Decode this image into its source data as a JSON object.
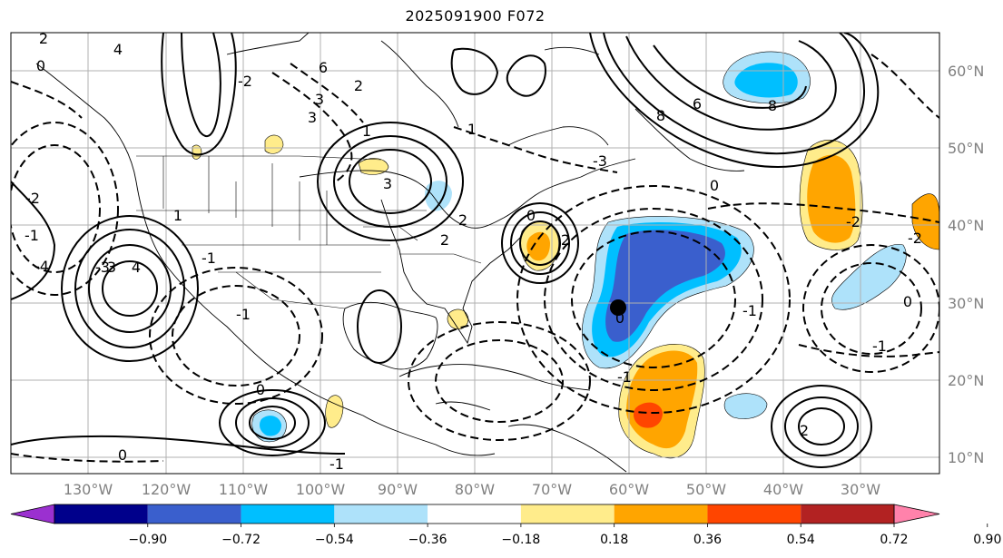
{
  "title": "2025091900 F072",
  "lon_ticks": [
    "130°W",
    "120°W",
    "110°W",
    "100°W",
    "90°W",
    "80°W",
    "70°W",
    "60°W",
    "50°W",
    "40°W",
    "30°W"
  ],
  "lat_ticks": [
    "60°N",
    "50°N",
    "40°N",
    "30°N",
    "20°N",
    "10°N"
  ],
  "colorbar": {
    "tick_labels": [
      "−0.90",
      "−0.72",
      "−0.54",
      "−0.36",
      "−0.18",
      "0.18",
      "0.36",
      "0.54",
      "0.72",
      "0.90"
    ],
    "colors": [
      "#9b30d0",
      "#00008b",
      "#3a5fcd",
      "#00bfff",
      "#aee2fa",
      "#ffffff",
      "#ffec8b",
      "#ffa500",
      "#ff4500",
      "#b22222",
      "#ff82ab"
    ]
  },
  "contour_labels": [
    "2",
    "0",
    "6",
    "3",
    "4",
    "2",
    "-2",
    "1",
    "3",
    "8",
    "6",
    "8",
    "0",
    "3",
    "-3",
    "-1",
    "-3",
    "-2",
    "1",
    "4",
    "3",
    "-4",
    "2",
    "0",
    "0",
    "-1",
    "-1",
    "-2",
    "0",
    "-1",
    "-1",
    "0",
    "-2",
    "2",
    "2",
    "-1",
    "0",
    "-1",
    "2",
    "1"
  ],
  "fill_colors": {
    "blue_dark": "#3a5fcd",
    "blue_mid": "#00bfff",
    "blue_light": "#aee2fa",
    "yellow": "#ffec8b",
    "orange": "#ffa500",
    "red": "#ff4500"
  },
  "marker": "storm-center-dot"
}
